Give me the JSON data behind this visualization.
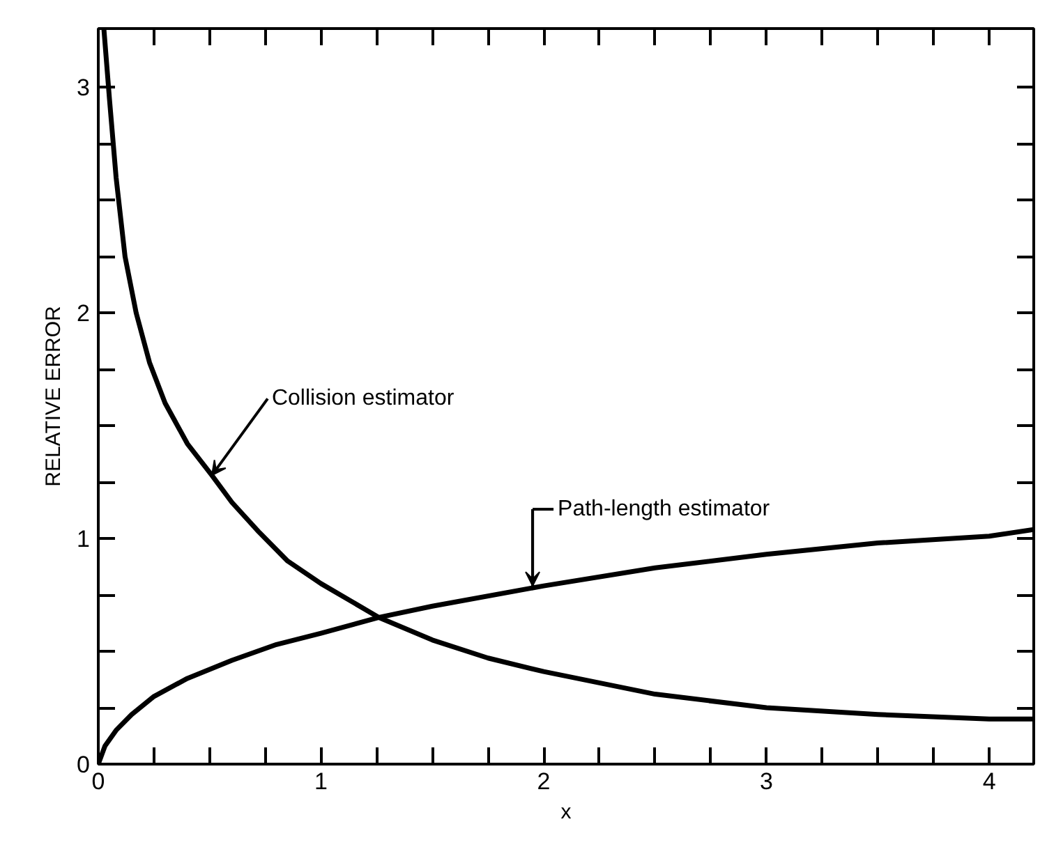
{
  "chart_data": {
    "type": "line",
    "xlabel": "x",
    "ylabel": "RELATIVE ERROR",
    "xlim": [
      0,
      4.2
    ],
    "ylim": [
      0,
      3.26
    ],
    "xticks": [
      0,
      {
        "value": 0.25,
        "label": null
      },
      {
        "value": 0.5,
        "label": null
      },
      {
        "value": 0.75,
        "label": null
      },
      1,
      {
        "value": 1.25,
        "label": null
      },
      {
        "value": 1.5,
        "label": null
      },
      {
        "value": 1.75,
        "label": null
      },
      2,
      {
        "value": 2.25,
        "label": null
      },
      {
        "value": 2.5,
        "label": null
      },
      {
        "value": 2.75,
        "label": null
      },
      3,
      {
        "value": 3.25,
        "label": null
      },
      {
        "value": 3.5,
        "label": null
      },
      {
        "value": 3.75,
        "label": null
      },
      4
    ],
    "yticks": [
      0,
      {
        "value": 0.25,
        "label": null
      },
      {
        "value": 0.5,
        "label": null
      },
      {
        "value": 0.75,
        "label": null
      },
      1,
      {
        "value": 1.25,
        "label": null
      },
      {
        "value": 1.5,
        "label": null
      },
      {
        "value": 1.75,
        "label": null
      },
      2,
      {
        "value": 2.25,
        "label": null
      },
      {
        "value": 2.5,
        "label": null
      },
      {
        "value": 2.75,
        "label": null
      },
      3
    ],
    "marker": "none",
    "line_style": "solid",
    "series": [
      {
        "color": "#000000",
        "x": [
          0.025,
          0.05,
          0.08,
          0.12,
          0.17,
          0.23,
          0.3,
          0.4,
          0.51,
          0.6,
          0.72,
          0.85,
          1.0,
          1.26,
          1.5,
          1.75,
          2.0,
          2.5,
          3.0,
          3.5,
          4.0,
          4.2
        ],
        "values": [
          3.26,
          2.95,
          2.6,
          2.25,
          2.0,
          1.78,
          1.6,
          1.42,
          1.28,
          1.16,
          1.03,
          0.9,
          0.8,
          0.65,
          0.55,
          0.47,
          0.41,
          0.31,
          0.25,
          0.22,
          0.2,
          0.2
        ]
      },
      {
        "color": "#000000",
        "x": [
          0,
          0.03,
          0.08,
          0.15,
          0.25,
          0.4,
          0.6,
          0.8,
          1.0,
          1.26,
          1.5,
          2.0,
          2.5,
          3.0,
          3.5,
          4.0,
          4.2
        ],
        "values": [
          0,
          0.08,
          0.15,
          0.22,
          0.3,
          0.38,
          0.46,
          0.53,
          0.58,
          0.65,
          0.7,
          0.79,
          0.87,
          0.93,
          0.98,
          1.01,
          1.04
        ]
      }
    ],
    "annotations": [
      {
        "text": "Collision estimator",
        "x": 0.51,
        "y": 1.28
      },
      {
        "text": "Path-length estimator",
        "x": 1.95,
        "y": 0.79
      }
    ]
  }
}
